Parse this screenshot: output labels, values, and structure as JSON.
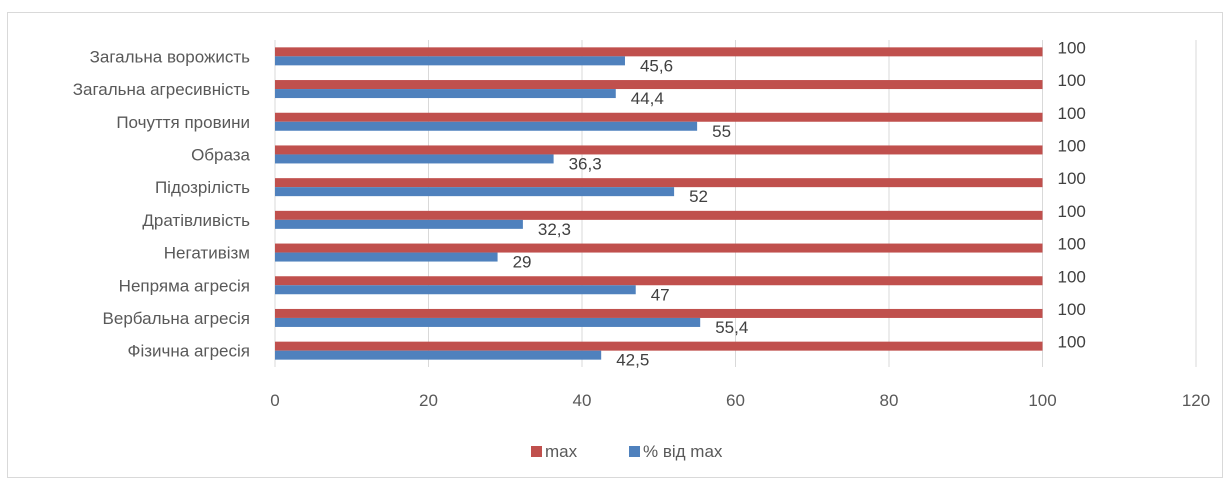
{
  "chart_data": {
    "type": "bar",
    "orientation": "horizontal",
    "categories": [
      "Загальна ворожисть",
      "Загальна агресивність",
      "Почуття провини",
      "Образа",
      "Підозрілість",
      "Дратівливість",
      "Негативізм",
      "Непряма агресія",
      "Вербальна агресія",
      "Фізична агресія"
    ],
    "series": [
      {
        "name": "max",
        "color": "#c0504d",
        "values": [
          100,
          100,
          100,
          100,
          100,
          100,
          100,
          100,
          100,
          100
        ],
        "labels": [
          "100",
          "100",
          "100",
          "100",
          "100",
          "100",
          "100",
          "100",
          "100",
          "100"
        ]
      },
      {
        "name": "% від max",
        "color": "#4f81bd",
        "values": [
          45.6,
          44.4,
          55,
          36.3,
          52,
          32.3,
          29,
          47,
          55.4,
          42.5
        ],
        "labels": [
          "45,6",
          "44,4",
          "55",
          "36,3",
          "52",
          "32,3",
          "29",
          "47",
          "55,4",
          "42,5"
        ]
      }
    ],
    "xlim": [
      0,
      120
    ],
    "xticks": [
      "0",
      "20",
      "40",
      "60",
      "80",
      "100",
      "120"
    ],
    "xtick_values": [
      0,
      20,
      40,
      60,
      80,
      100,
      120
    ],
    "grid": true,
    "gridline_color": "#d9d9d9",
    "legend_position": "bottom",
    "title": "",
    "xlabel": "",
    "ylabel": ""
  }
}
